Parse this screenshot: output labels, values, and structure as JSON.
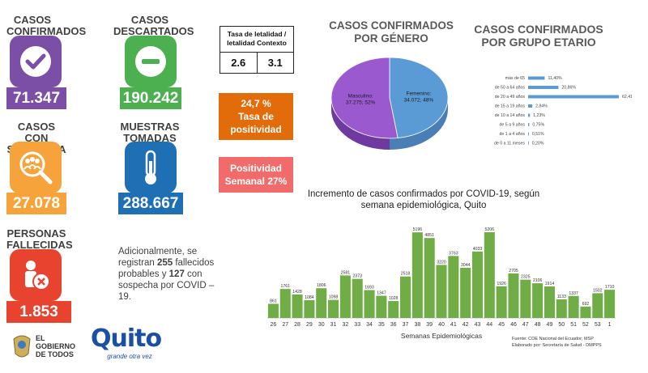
{
  "kpis": {
    "confirmados": {
      "title": "CASOS CONFIRMADOS",
      "value": "71.347",
      "color": "#7b4fa6",
      "icon": "check-circle-icon"
    },
    "descartados": {
      "title": "CASOS DESCARTADOS",
      "value": "190.242",
      "color": "#4caf50",
      "icon": "minus-circle-icon"
    },
    "sospecha": {
      "title": "CASOS CON SOSPECHA",
      "value": "27.078",
      "color": "#f5a33a",
      "icon": "magnify-people-icon"
    },
    "muestras": {
      "title": "MUESTRAS TOMADAS",
      "value": "288.667",
      "color": "#1f6fb5",
      "icon": "thermometer-icon"
    },
    "fallecidas": {
      "title": "PERSONAS FALLECIDAS",
      "value": "1.853",
      "color": "#e8432e",
      "icon": "person-x-icon"
    }
  },
  "letalidad": {
    "header": "Tasa de letalidad / letalidad Contexto",
    "val1": "2.6",
    "val2": "3.1"
  },
  "positividad": {
    "line1": "24,7 %",
    "line2": "Tasa de",
    "line3": "positividad",
    "color": "#e36c0a"
  },
  "positividad_semanal": {
    "line1": "Positividad",
    "line2": "Semanal  27%",
    "color": "#f26b6b"
  },
  "note": {
    "pre": "Adicionalmente, se registran ",
    "n1": "255",
    "mid": " fallecidos probables y ",
    "n2": "127",
    "post": " con sospecha por COVID – 19."
  },
  "logos": {
    "gobierno": "EL GOBIERNO DE TODOS",
    "quito": "Quito",
    "quito_tag": "grande otra vez"
  },
  "sources": {
    "line1": "Fuente: COE Nacional del Ecuador; MSP",
    "line2": "Elaborado por: Secretaría de Salud - DMPPS"
  },
  "chart_data": [
    {
      "type": "pie",
      "title": "CASOS CONFIRMADOS POR GÉNERO",
      "slices": [
        {
          "name": "Masculino",
          "value": 37275,
          "percent": 52,
          "label": "Masculino; 37.275; 52%",
          "color": "#9b59d0"
        },
        {
          "name": "Femenino",
          "value": 34072,
          "percent": 48,
          "label": "Femenino; 34.072; 48%",
          "color": "#5b9bd5"
        }
      ]
    },
    {
      "type": "bar",
      "orientation": "horizontal",
      "title": "CASOS CONFIRMADOS POR GRUPO ETARIO",
      "categories": [
        "más de 65",
        "de 50 a 64 años",
        "de 20 a 49 años",
        "de 15 a 19 años",
        "de 10 a 14 años",
        "de 5 a 9 años",
        "de 1 a 4 años",
        "de 0 a 11 meses"
      ],
      "values": [
        11.4,
        20.86,
        62.41,
        2.84,
        1.23,
        0.75,
        0.51,
        0.2
      ],
      "labels": [
        "11,40%",
        "20,86%",
        "62,41%",
        "2,84%",
        "1,23%",
        "0,75%",
        "0,51%",
        "0,20%"
      ],
      "color": "#5b9bd5"
    },
    {
      "type": "bar",
      "title": "Incremento de casos confirmados por COVID-19, según semana epidemiológica, Quito",
      "xlabel": "Semanas Epidemiológicas",
      "categories": [
        "26",
        "27",
        "28",
        "29",
        "30",
        "31",
        "32",
        "33",
        "34",
        "35",
        "36",
        "37",
        "38",
        "39",
        "40",
        "41",
        "42",
        "43",
        "44",
        "45",
        "46",
        "47",
        "48",
        "49",
        "50",
        "51",
        "52",
        "53",
        "1"
      ],
      "values": [
        861,
        1761,
        1428,
        1084,
        1806,
        1098,
        2581,
        2373,
        1693,
        1347,
        1028,
        2518,
        5196,
        4851,
        3220,
        3763,
        3044,
        4033,
        5206,
        1926,
        2705,
        2325,
        2106,
        1914,
        1133,
        1337,
        692,
        1502,
        1710
      ],
      "color": "#70ad47"
    }
  ]
}
